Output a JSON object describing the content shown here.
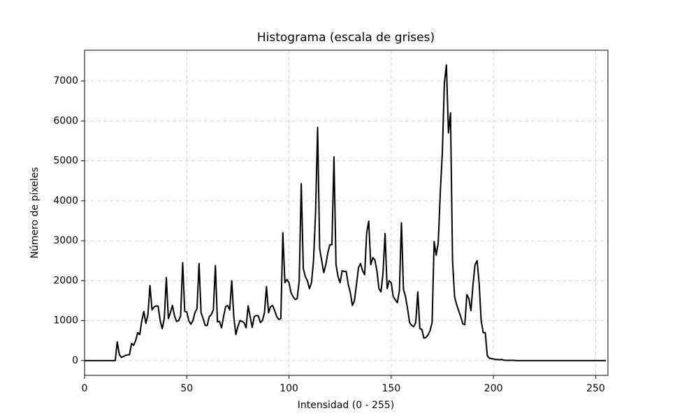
{
  "chart_data": {
    "type": "line",
    "title": "Histograma (escala de grises)",
    "x_label": "Intensidad (0 - 255)",
    "y_label": "Número de píxeles",
    "x": [
      0,
      1,
      2,
      3,
      4,
      5,
      6,
      7,
      8,
      9,
      10,
      11,
      12,
      13,
      14,
      15,
      16,
      17,
      18,
      19,
      20,
      21,
      22,
      23,
      24,
      25,
      26,
      27,
      28,
      29,
      30,
      31,
      32,
      33,
      34,
      35,
      36,
      37,
      38,
      39,
      40,
      41,
      42,
      43,
      44,
      45,
      46,
      47,
      48,
      49,
      50,
      51,
      52,
      53,
      54,
      55,
      56,
      57,
      58,
      59,
      60,
      61,
      62,
      63,
      64,
      65,
      66,
      67,
      68,
      69,
      70,
      71,
      72,
      73,
      74,
      75,
      76,
      77,
      78,
      79,
      80,
      81,
      82,
      83,
      84,
      85,
      86,
      87,
      88,
      89,
      90,
      91,
      92,
      93,
      94,
      95,
      96,
      97,
      98,
      99,
      100,
      101,
      102,
      103,
      104,
      105,
      106,
      107,
      108,
      109,
      110,
      111,
      112,
      113,
      114,
      115,
      116,
      117,
      118,
      119,
      120,
      121,
      122,
      123,
      124,
      125,
      126,
      127,
      128,
      129,
      130,
      131,
      132,
      133,
      134,
      135,
      136,
      137,
      138,
      139,
      140,
      141,
      142,
      143,
      144,
      145,
      146,
      147,
      148,
      149,
      150,
      151,
      152,
      153,
      154,
      155,
      156,
      157,
      158,
      159,
      160,
      161,
      162,
      163,
      164,
      165,
      166,
      167,
      168,
      169,
      170,
      171,
      172,
      173,
      174,
      175,
      176,
      177,
      178,
      179,
      180,
      181,
      182,
      183,
      184,
      185,
      186,
      187,
      188,
      189,
      190,
      191,
      192,
      193,
      194,
      195,
      196,
      197,
      198,
      199,
      200,
      201,
      202,
      203,
      204,
      205,
      206,
      207,
      208,
      209,
      210,
      211,
      212,
      213,
      214,
      215,
      216,
      217,
      218,
      219,
      220,
      221,
      222,
      223,
      224,
      225,
      226,
      227,
      228,
      229,
      230,
      231,
      232,
      233,
      234,
      235,
      236,
      237,
      238,
      239,
      240,
      241,
      242,
      243,
      244,
      245,
      246,
      247,
      248,
      249,
      250,
      251,
      252,
      253,
      254,
      255
    ],
    "values": [
      0,
      0,
      0,
      0,
      0,
      0,
      0,
      0,
      0,
      0,
      0,
      0,
      0,
      0,
      0,
      0,
      470,
      150,
      80,
      100,
      130,
      140,
      150,
      430,
      380,
      500,
      700,
      650,
      1000,
      1230,
      930,
      1150,
      1880,
      1270,
      1340,
      1370,
      1360,
      1000,
      800,
      1050,
      2080,
      1050,
      1200,
      1380,
      1120,
      980,
      1000,
      1120,
      2450,
      1230,
      1220,
      1000,
      910,
      1000,
      1200,
      1300,
      2430,
      1200,
      1050,
      880,
      880,
      1100,
      1150,
      1270,
      2380,
      970,
      980,
      820,
      1100,
      1350,
      1380,
      1270,
      2000,
      1100,
      650,
      850,
      1000,
      980,
      950,
      820,
      1370,
      1100,
      830,
      1100,
      1130,
      1120,
      950,
      1000,
      1200,
      1850,
      1200,
      1350,
      1380,
      1250,
      1100,
      1030,
      1050,
      3200,
      1950,
      2030,
      1950,
      1700,
      1600,
      1530,
      1550,
      2000,
      4430,
      2300,
      2100,
      2000,
      1800,
      1950,
      2500,
      3700,
      5840,
      2800,
      2500,
      2200,
      2400,
      2700,
      2900,
      2900,
      5100,
      2400,
      2100,
      1950,
      2250,
      2230,
      2230,
      1900,
      1700,
      1380,
      1500,
      1900,
      2330,
      2430,
      2250,
      2150,
      3200,
      3490,
      2400,
      2580,
      2520,
      2250,
      1800,
      1720,
      2200,
      3180,
      1800,
      2000,
      1950,
      1600,
      1520,
      1450,
      1750,
      3450,
      1780,
      1600,
      1300,
      950,
      880,
      850,
      950,
      1720,
      800,
      780,
      560,
      580,
      640,
      750,
      950,
      2980,
      2640,
      2950,
      4200,
      5200,
      6950,
      7400,
      5700,
      6200,
      2500,
      1600,
      1400,
      1250,
      1100,
      920,
      900,
      1650,
      1550,
      1250,
      1900,
      2400,
      2500,
      1950,
      1000,
      700,
      700,
      120,
      60,
      50,
      40,
      30,
      25,
      20,
      30,
      10,
      5,
      5,
      5,
      5,
      5,
      0,
      0,
      0,
      0,
      0,
      0,
      0,
      0,
      0,
      0,
      0,
      0,
      0,
      0,
      0,
      0,
      0,
      0,
      0,
      0,
      0,
      0,
      0,
      0,
      0,
      0,
      0,
      0,
      0,
      0,
      0,
      0,
      0,
      0,
      0,
      0,
      0,
      0,
      0,
      0,
      0,
      0,
      0,
      0,
      0
    ],
    "color": "#000000",
    "xlim": [
      0,
      256
    ],
    "xticks": [
      0,
      50,
      100,
      150,
      200,
      250
    ],
    "ylim": [
      -370,
      7770
    ],
    "yticks": [
      0,
      1000,
      2000,
      3000,
      4000,
      5000,
      6000,
      7000
    ],
    "grid": true
  }
}
